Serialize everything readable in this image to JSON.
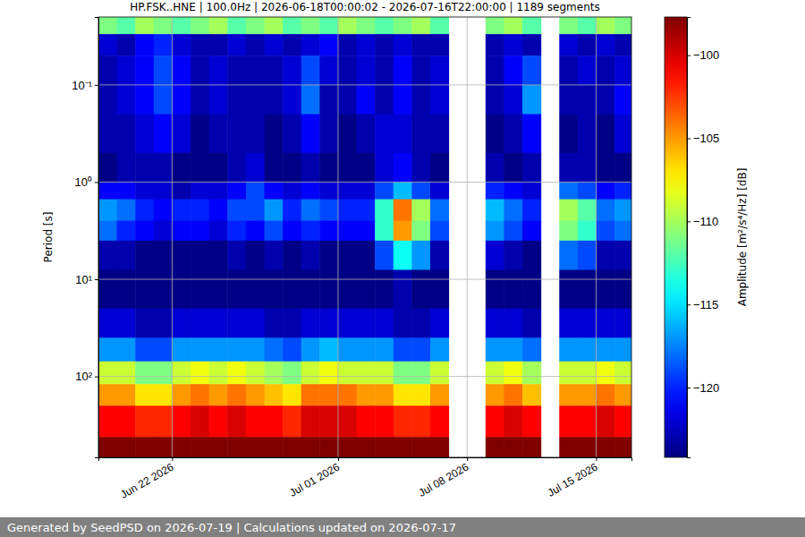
{
  "chart_data": {
    "type": "heatmap",
    "title": "HP.FSK..HNE | 100.0Hz | 2026-06-18T00:00:02 - 2026-07-16T22:00:00 | 1189 segments",
    "y_label": "Period [s]",
    "footer": "Generated by SeedPSD on 2026-07-19 | Calculations updated on 2026-07-17",
    "log": "y",
    "grid": true,
    "xlim": [
      "2026-06-18T00:00:02",
      "2026-07-16T22:00:00"
    ],
    "xticks": [
      {
        "value": "2026-06-22",
        "label": "Jun 22 2026"
      },
      {
        "value": "2026-07-01",
        "label": "Jul 01 2026"
      },
      {
        "value": "2026-07-08",
        "label": "Jul 08 2026"
      },
      {
        "value": "2026-07-15",
        "label": "Jul 15 2026"
      }
    ],
    "ylim": [
      0.02,
      680
    ],
    "yticks": [
      {
        "value": 0.1,
        "label": "10⁻¹"
      },
      {
        "value": 1,
        "label": "10⁰"
      },
      {
        "value": 10,
        "label": "10¹"
      },
      {
        "value": 100,
        "label": "10²"
      }
    ],
    "x_edges": [
      "2026-06-18",
      "2026-06-19",
      "2026-06-20",
      "2026-06-21",
      "2026-06-22",
      "2026-06-23",
      "2026-06-24",
      "2026-06-25",
      "2026-06-26",
      "2026-06-27",
      "2026-06-28",
      "2026-06-29",
      "2026-06-30",
      "2026-07-01",
      "2026-07-02",
      "2026-07-03",
      "2026-07-04",
      "2026-07-05",
      "2026-07-06",
      "2026-07-07",
      "2026-07-08",
      "2026-07-09",
      "2026-07-10",
      "2026-07-11",
      "2026-07-12",
      "2026-07-13",
      "2026-07-14",
      "2026-07-15",
      "2026-07-16",
      "2026-07-17"
    ],
    "y_edges": [
      0.02,
      0.03,
      0.05,
      0.1,
      0.2,
      0.5,
      1,
      1.5,
      2.5,
      4,
      8,
      20,
      40,
      70,
      120,
      200,
      420,
      680
    ],
    "cells": [
      [
        -111,
        -112,
        -110,
        -111,
        -112,
        -111,
        -110,
        -112,
        -111,
        -110,
        -112,
        -111,
        -112,
        -110,
        -111,
        -112,
        -111,
        -110,
        -112,
        null,
        null,
        -111,
        -110,
        -112,
        null,
        -111,
        -112,
        -110,
        -111
      ],
      [
        -122,
        -123,
        -121,
        -120,
        -122,
        -123,
        -123,
        -122,
        -123,
        -122,
        -123,
        -122,
        -121,
        -123,
        -122,
        -123,
        -122,
        -123,
        -123,
        null,
        null,
        -123,
        -122,
        -123,
        null,
        -122,
        -123,
        -122,
        -123
      ],
      [
        -123,
        -122,
        -121,
        -119,
        -121,
        -123,
        -122,
        -123,
        -123,
        -123,
        -122,
        -119,
        -122,
        -123,
        -122,
        -123,
        -121,
        -123,
        -122,
        null,
        null,
        -123,
        -121,
        -119,
        null,
        -123,
        -122,
        -123,
        -122
      ],
      [
        -123,
        -122,
        -121,
        -119,
        -121,
        -123,
        -122,
        -123,
        -123,
        -123,
        -122,
        -118,
        -123,
        -123,
        -121,
        -123,
        -121,
        -123,
        -122,
        null,
        null,
        -123,
        -122,
        -117,
        null,
        -123,
        -123,
        -123,
        -121
      ],
      [
        -123,
        -123,
        -122,
        -121,
        -122,
        -124,
        -123,
        -123,
        -123,
        -124,
        -123,
        -121,
        -123,
        -124,
        -123,
        -122,
        -122,
        -123,
        -123,
        null,
        null,
        -124,
        -123,
        -121,
        null,
        -124,
        -123,
        -124,
        -122
      ],
      [
        -124,
        -123,
        -123,
        -123,
        -124,
        -124,
        -124,
        -123,
        -122,
        -124,
        -124,
        -123,
        -124,
        -124,
        -124,
        -122,
        -121,
        -123,
        -124,
        null,
        null,
        -123,
        -124,
        -123,
        null,
        -123,
        -123,
        -124,
        -124
      ],
      [
        -121,
        -121,
        -122,
        -122,
        -123,
        -122,
        -122,
        -121,
        -119,
        -121,
        -122,
        -121,
        -122,
        -122,
        -122,
        -119,
        -116,
        -119,
        -122,
        null,
        null,
        -120,
        -121,
        -122,
        null,
        -118,
        -119,
        -121,
        -120
      ],
      [
        -117,
        -118,
        -120,
        -121,
        -120,
        -120,
        -121,
        -119,
        -119,
        -117,
        -120,
        -118,
        -119,
        -120,
        -120,
        -113,
        -104,
        -110,
        -118,
        null,
        null,
        -116,
        -118,
        -120,
        null,
        -110,
        -112,
        -118,
        -117
      ],
      [
        -118,
        -120,
        -121,
        -122,
        -121,
        -121,
        -122,
        -120,
        -121,
        -119,
        -121,
        -120,
        -121,
        -121,
        -121,
        -113,
        -105,
        -111,
        -119,
        null,
        null,
        -117,
        -119,
        -121,
        null,
        -111,
        -113,
        -119,
        -118
      ],
      [
        -123,
        -123,
        -124,
        -124,
        -124,
        -124,
        -124,
        -123,
        -124,
        -123,
        -124,
        -123,
        -124,
        -124,
        -124,
        -119,
        -114,
        -117,
        -123,
        null,
        null,
        -122,
        -123,
        -124,
        null,
        -118,
        -119,
        -123,
        -123
      ],
      [
        -124,
        -124,
        -124,
        -124,
        -124,
        -124,
        -124,
        -124,
        -124,
        -124,
        -124,
        -124,
        -124,
        -124,
        -124,
        -124,
        -123,
        -124,
        -124,
        null,
        null,
        -124,
        -124,
        -124,
        null,
        -124,
        -124,
        -124,
        -124
      ],
      [
        -122,
        -122,
        -123,
        -123,
        -122,
        -122,
        -122,
        -122,
        -122,
        -123,
        -123,
        -122,
        -122,
        -122,
        -122,
        -122,
        -123,
        -123,
        -122,
        null,
        null,
        -122,
        -122,
        -123,
        null,
        -122,
        -122,
        -122,
        -122
      ],
      [
        -117,
        -117,
        -119,
        -119,
        -117,
        -117,
        -117,
        -117,
        -117,
        -118,
        -119,
        -117,
        -116,
        -117,
        -117,
        -117,
        -119,
        -119,
        -117,
        null,
        null,
        -117,
        -117,
        -118,
        null,
        -117,
        -117,
        -117,
        -117
      ],
      [
        -109,
        -109,
        -111,
        -111,
        -109,
        -108,
        -109,
        -108,
        -109,
        -110,
        -111,
        -109,
        -108,
        -109,
        -109,
        -109,
        -111,
        -111,
        -109,
        null,
        null,
        -109,
        -108,
        -110,
        null,
        -109,
        -109,
        -108,
        -109
      ],
      [
        -105,
        -105,
        -107,
        -107,
        -105,
        -104,
        -105,
        -104,
        -105,
        -106,
        -107,
        -104,
        -104,
        -104,
        -105,
        -105,
        -107,
        -107,
        -105,
        null,
        null,
        -105,
        -104,
        -106,
        null,
        -105,
        -105,
        -104,
        -105
      ],
      [
        -101,
        -101,
        -102,
        -102,
        -101,
        -100,
        -101,
        -100,
        -101,
        -101,
        -102,
        -100,
        -100,
        -100,
        -101,
        -101,
        -102,
        -102,
        -101,
        null,
        null,
        -101,
        -100,
        -101,
        null,
        -101,
        -101,
        -100,
        -101
      ],
      [
        -96,
        -96,
        -96,
        -96,
        -96,
        -96,
        -96,
        -96,
        -96,
        -96,
        -96,
        -96,
        -96,
        -96,
        -96,
        -96,
        -96,
        -96,
        -96,
        null,
        null,
        -96,
        -96,
        -96,
        null,
        -96,
        -96,
        -96,
        -96
      ]
    ],
    "colorbar": {
      "label": "Amplitude [m²/s⁴/Hz] [dB]",
      "range": [
        -124.2,
        -97.7
      ],
      "ticks": [
        {
          "value": -100,
          "label": "−100"
        },
        {
          "value": -105,
          "label": "−105"
        },
        {
          "value": -110,
          "label": "−110"
        },
        {
          "value": -115,
          "label": "−115"
        },
        {
          "value": -120,
          "label": "−120"
        }
      ]
    }
  }
}
